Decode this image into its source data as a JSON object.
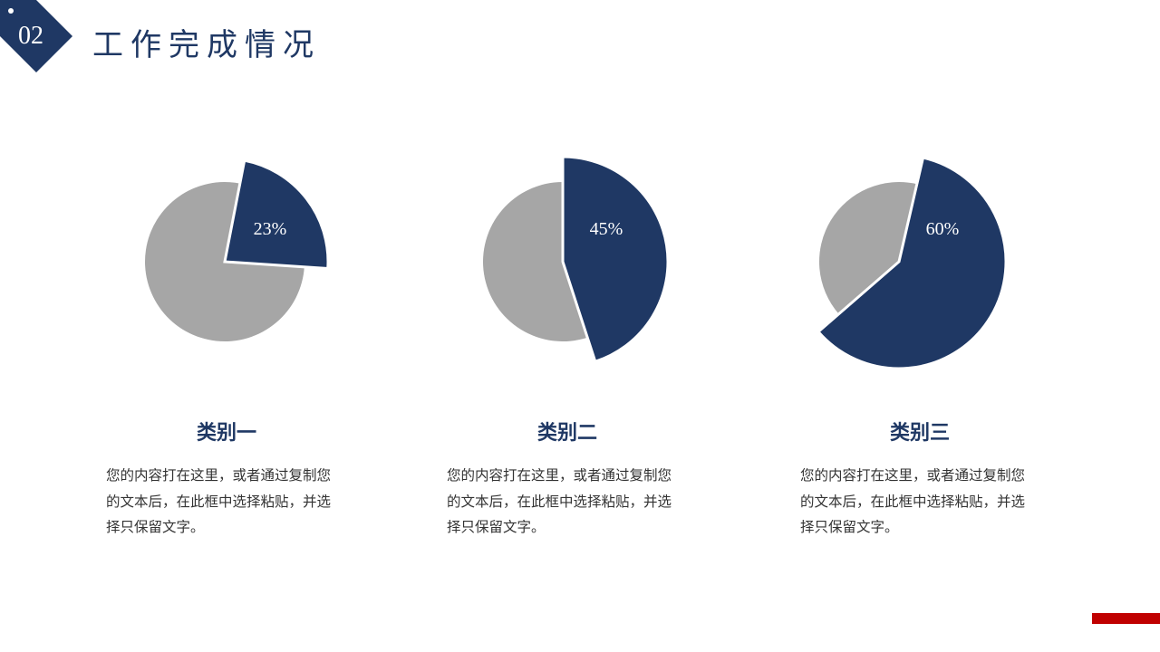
{
  "header": {
    "section_number": "02",
    "title": "工作完成情况"
  },
  "colors": {
    "primary": "#1f3864",
    "secondary": "#a6a6a6",
    "accent": "#c00000"
  },
  "chart_data": [
    {
      "type": "pie",
      "values": [
        23,
        77
      ],
      "labels": [
        "23%",
        ""
      ]
    },
    {
      "type": "pie",
      "values": [
        45,
        55
      ],
      "labels": [
        "45%",
        ""
      ]
    },
    {
      "type": "pie",
      "values": [
        60,
        40
      ],
      "labels": [
        "60%",
        ""
      ]
    }
  ],
  "categories": [
    {
      "title": "类别一",
      "body": "您的内容打在这里，或者通过复制您的文本后，在此框中选择粘贴，并选择只保留文字。"
    },
    {
      "title": "类别二",
      "body": "您的内容打在这里，或者通过复制您的文本后，在此框中选择粘贴，并选择只保留文字。"
    },
    {
      "title": "类别三",
      "body": "您的内容打在这里，或者通过复制您的文本后，在此框中选择粘贴，并选择只保留文字。"
    }
  ]
}
